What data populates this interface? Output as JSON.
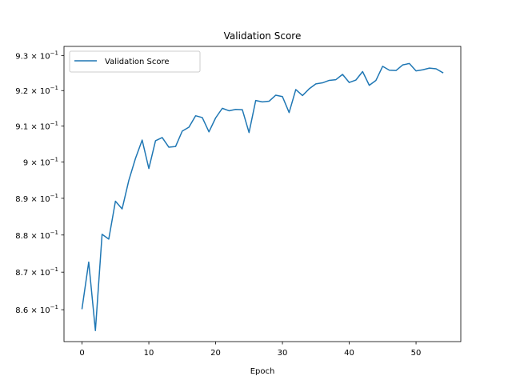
{
  "chart_data": {
    "type": "line",
    "title": "Validation Score",
    "xlabel": "Epoch",
    "ylabel": "",
    "yscale": "log",
    "xlim": [
      -2.7,
      56.7
    ],
    "ylim": [
      0.8516,
      0.9326
    ],
    "grid": false,
    "legend_position": "top-left",
    "x_ticks": [
      0,
      10,
      20,
      30,
      40,
      50
    ],
    "x_tick_labels": [
      "0",
      "10",
      "20",
      "30",
      "40",
      "50"
    ],
    "y_ticks": [
      0.86,
      0.87,
      0.88,
      0.89,
      0.9,
      0.91,
      0.92,
      0.93
    ],
    "y_tick_labels": [
      {
        "mantissa": "8.6 × 10",
        "exponent": "−1"
      },
      {
        "mantissa": "8.7 × 10",
        "exponent": "−1"
      },
      {
        "mantissa": "8.8 × 10",
        "exponent": "−1"
      },
      {
        "mantissa": "8.9 × 10",
        "exponent": "−1"
      },
      {
        "mantissa": "9 × 10",
        "exponent": "−1"
      },
      {
        "mantissa": "9.1 × 10",
        "exponent": "−1"
      },
      {
        "mantissa": "9.2 × 10",
        "exponent": "−1"
      },
      {
        "mantissa": "9.3 × 10",
        "exponent": "−1"
      }
    ],
    "series": [
      {
        "name": "Validation Score",
        "color": "#1f77b4",
        "x": [
          0,
          1,
          2,
          3,
          4,
          5,
          6,
          7,
          8,
          9,
          10,
          11,
          12,
          13,
          14,
          15,
          16,
          17,
          18,
          19,
          20,
          21,
          22,
          23,
          24,
          25,
          26,
          27,
          28,
          29,
          30,
          31,
          32,
          33,
          34,
          35,
          36,
          37,
          38,
          39,
          40,
          41,
          42,
          43,
          44,
          45,
          46,
          47,
          48,
          49,
          50,
          51,
          52,
          53,
          54
        ],
        "y": [
          0.8603,
          0.8727,
          0.8545,
          0.8802,
          0.8789,
          0.8892,
          0.8871,
          0.8949,
          0.901,
          0.9061,
          0.8982,
          0.9059,
          0.9068,
          0.9041,
          0.9043,
          0.9086,
          0.9097,
          0.9129,
          0.9124,
          0.9084,
          0.9123,
          0.915,
          0.9143,
          0.9147,
          0.9146,
          0.9082,
          0.9172,
          0.9168,
          0.917,
          0.9187,
          0.9183,
          0.9138,
          0.9203,
          0.9186,
          0.9205,
          0.9219,
          0.9222,
          0.9229,
          0.9231,
          0.9246,
          0.9223,
          0.923,
          0.9254,
          0.9215,
          0.9229,
          0.9269,
          0.9258,
          0.9257,
          0.9273,
          0.9277,
          0.9256,
          0.9259,
          0.9264,
          0.9262,
          0.9251
        ]
      }
    ]
  }
}
